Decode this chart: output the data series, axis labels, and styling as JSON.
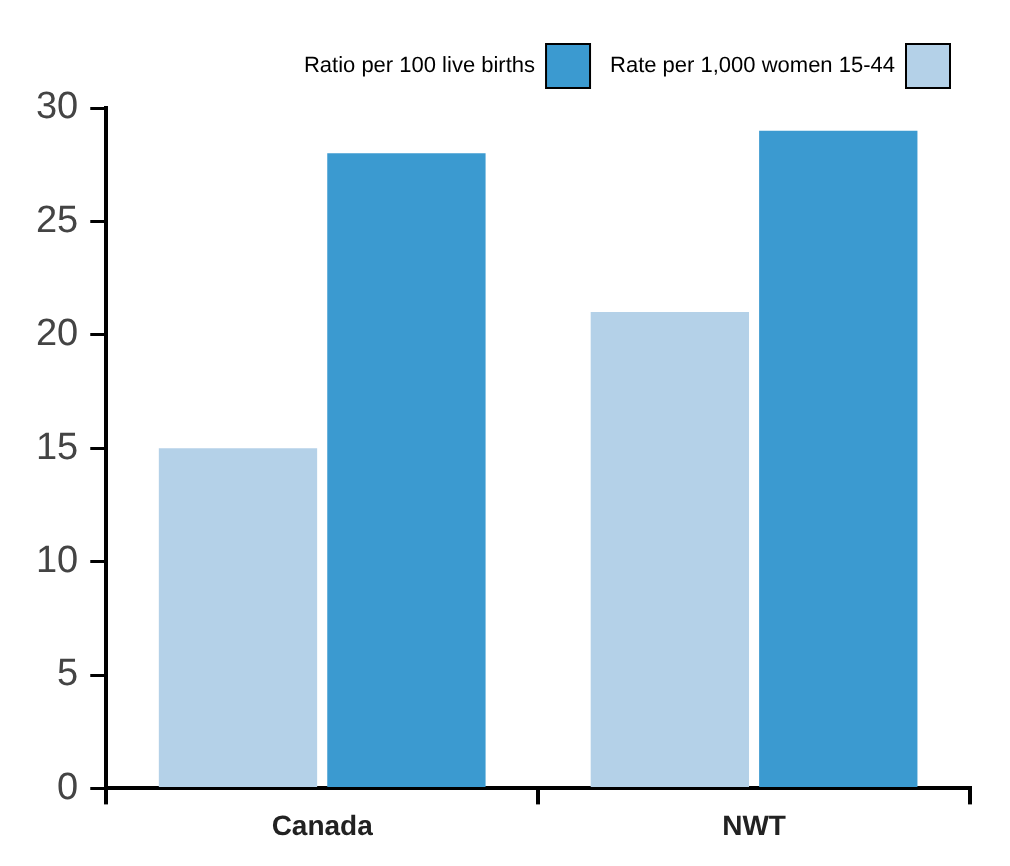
{
  "chart_data": {
    "type": "bar",
    "categories": [
      "Canada",
      "NWT"
    ],
    "series": [
      {
        "name": "Rate per 1,000 women 15-44",
        "color": "#b4d1e8",
        "values": [
          15,
          21
        ]
      },
      {
        "name": "Ratio per 100 live births",
        "color": "#3b9ad0",
        "values": [
          28,
          29
        ]
      }
    ],
    "ylim": [
      0,
      30
    ],
    "yticks": [
      0,
      5,
      10,
      15,
      20,
      25,
      30
    ],
    "grid": false,
    "legend": "top right"
  }
}
